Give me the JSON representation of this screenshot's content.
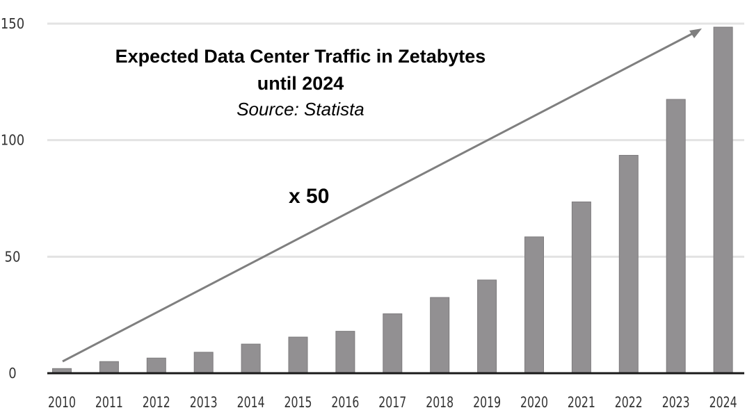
{
  "chart_data": {
    "type": "bar",
    "title": "Expected Data Center Traffic in Zetabytes until 2024",
    "title_lines": [
      "Expected Data Center Traffic in Zetabytes",
      "until 2024"
    ],
    "subtitle": "Source: Statista",
    "annotation": "x 50",
    "xlabel": "",
    "ylabel": "",
    "categories": [
      "2010",
      "2011",
      "2012",
      "2013",
      "2014",
      "2015",
      "2016",
      "2017",
      "2018",
      "2019",
      "2020",
      "2021",
      "2022",
      "2023",
      "2024"
    ],
    "values": [
      2,
      5,
      6.5,
      9,
      12.5,
      15.5,
      18,
      25.5,
      32.5,
      40,
      58.5,
      73.5,
      93.5,
      117.5,
      148.5
    ],
    "ylim": [
      0,
      150
    ],
    "yticks": [
      "0",
      "50",
      "100",
      "150"
    ],
    "grid": true,
    "legend": "none",
    "colors": {
      "bar": "#929092",
      "arrow": "#7f7f7f",
      "grid": "#e3e3e3",
      "axis": "#1a1a1a"
    }
  }
}
